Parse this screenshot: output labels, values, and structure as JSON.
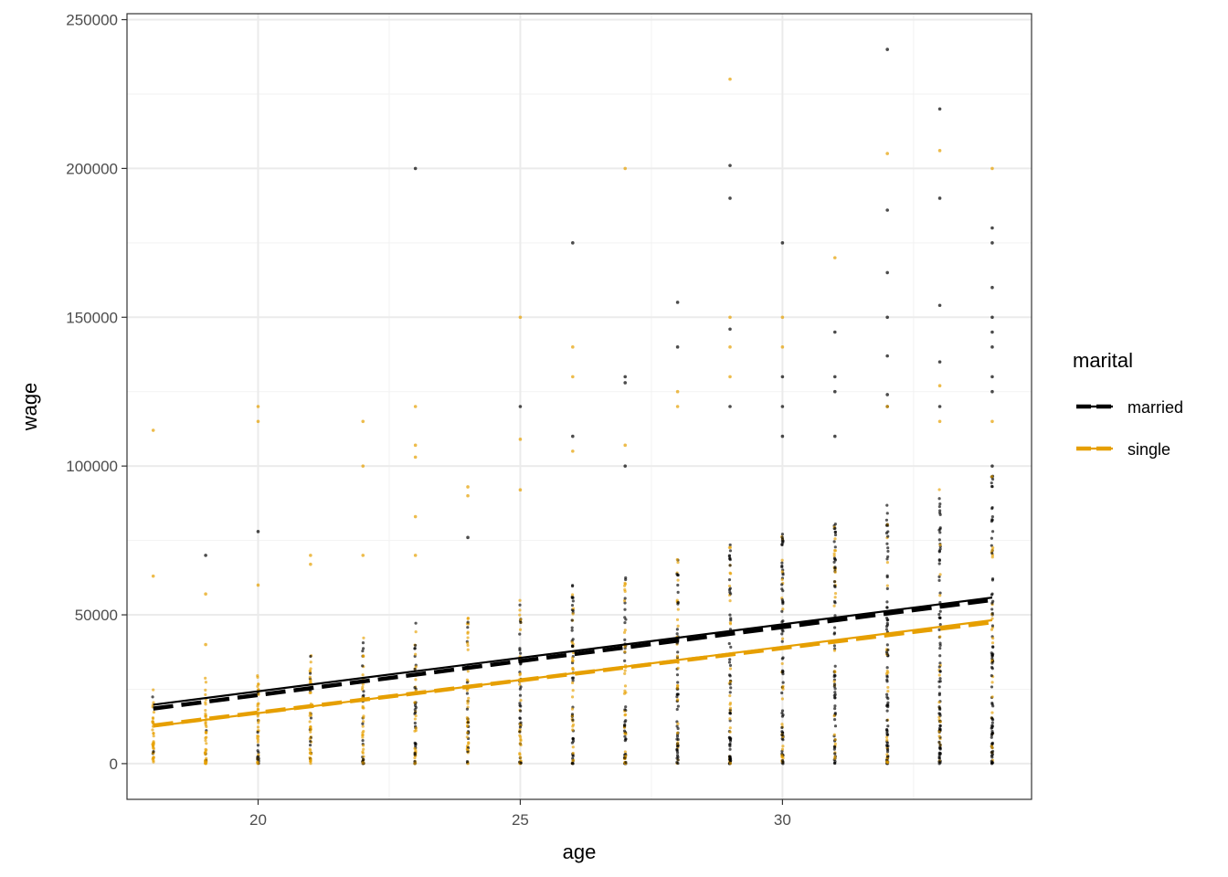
{
  "chart_data": {
    "type": "scatter",
    "xlabel": "age",
    "ylabel": "wage",
    "xlim": [
      17.5,
      34.75
    ],
    "ylim": [
      -12000,
      252000
    ],
    "x_ticks": [
      20,
      25,
      30
    ],
    "x_tick_labels": [
      "20",
      "25",
      "30"
    ],
    "y_ticks": [
      0,
      50000,
      100000,
      150000,
      200000,
      250000
    ],
    "y_tick_labels": [
      "0",
      "50000",
      "100000",
      "150000",
      "200000",
      "250000"
    ],
    "grid": true,
    "legend": {
      "title": "marital",
      "position": "right",
      "entries": [
        "married",
        "single"
      ]
    },
    "colors": {
      "married": "#000000",
      "single": "#E69F00"
    },
    "x_ages": [
      18,
      19,
      20,
      21,
      22,
      23,
      24,
      25,
      26,
      27,
      28,
      29,
      30,
      31,
      32,
      33,
      34
    ],
    "series": [
      {
        "name": "married",
        "color": "#000000",
        "points": [
          [
            19,
            70000
          ],
          [
            20,
            78000
          ],
          [
            23,
            200000
          ],
          [
            24,
            76000
          ],
          [
            25,
            120000
          ],
          [
            26,
            175000
          ],
          [
            26,
            110000
          ],
          [
            27,
            130000
          ],
          [
            27,
            128000
          ],
          [
            27,
            100000
          ],
          [
            28,
            155000
          ],
          [
            28,
            140000
          ],
          [
            29,
            201000
          ],
          [
            29,
            190000
          ],
          [
            29,
            146000
          ],
          [
            29,
            120000
          ],
          [
            30,
            175000
          ],
          [
            30,
            130000
          ],
          [
            30,
            120000
          ],
          [
            30,
            110000
          ],
          [
            31,
            145000
          ],
          [
            31,
            130000
          ],
          [
            31,
            125000
          ],
          [
            31,
            110000
          ],
          [
            32,
            240000
          ],
          [
            32,
            186000
          ],
          [
            32,
            165000
          ],
          [
            32,
            150000
          ],
          [
            32,
            137000
          ],
          [
            32,
            124000
          ],
          [
            32,
            120000
          ],
          [
            33,
            220000
          ],
          [
            33,
            190000
          ],
          [
            33,
            154000
          ],
          [
            33,
            135000
          ],
          [
            33,
            120000
          ],
          [
            34,
            180000
          ],
          [
            34,
            175000
          ],
          [
            34,
            160000
          ],
          [
            34,
            150000
          ],
          [
            34,
            145000
          ],
          [
            34,
            140000
          ],
          [
            34,
            130000
          ],
          [
            34,
            125000
          ],
          [
            34,
            100000
          ]
        ]
      },
      {
        "name": "single",
        "color": "#E69F00",
        "points": [
          [
            18,
            112000
          ],
          [
            18,
            63000
          ],
          [
            19,
            57000
          ],
          [
            19,
            40000
          ],
          [
            20,
            120000
          ],
          [
            20,
            115000
          ],
          [
            20,
            60000
          ],
          [
            21,
            70000
          ],
          [
            21,
            67000
          ],
          [
            22,
            115000
          ],
          [
            22,
            100000
          ],
          [
            22,
            70000
          ],
          [
            23,
            120000
          ],
          [
            23,
            107000
          ],
          [
            23,
            103000
          ],
          [
            23,
            83000
          ],
          [
            23,
            70000
          ],
          [
            24,
            93000
          ],
          [
            24,
            90000
          ],
          [
            25,
            150000
          ],
          [
            25,
            109000
          ],
          [
            25,
            92000
          ],
          [
            26,
            140000
          ],
          [
            26,
            130000
          ],
          [
            26,
            105000
          ],
          [
            27,
            200000
          ],
          [
            27,
            107000
          ],
          [
            28,
            125000
          ],
          [
            28,
            120000
          ],
          [
            29,
            230000
          ],
          [
            29,
            150000
          ],
          [
            29,
            140000
          ],
          [
            29,
            130000
          ],
          [
            30,
            150000
          ],
          [
            30,
            140000
          ],
          [
            31,
            170000
          ],
          [
            32,
            205000
          ],
          [
            32,
            120000
          ],
          [
            33,
            206000
          ],
          [
            33,
            127000
          ],
          [
            33,
            115000
          ],
          [
            34,
            200000
          ],
          [
            34,
            115000
          ]
        ]
      }
    ],
    "fit_lines": [
      {
        "series": "married",
        "style": "solid",
        "x": [
          18,
          34
        ],
        "y": [
          19800,
          55800
        ]
      },
      {
        "series": "married",
        "style": "dashed",
        "x": [
          18,
          34
        ],
        "y": [
          18500,
          55000
        ]
      },
      {
        "series": "single",
        "style": "solid",
        "x": [
          18,
          34
        ],
        "y": [
          12500,
          48200
        ]
      },
      {
        "series": "single",
        "style": "dashed",
        "x": [
          18,
          34
        ],
        "y": [
          12800,
          47500
        ]
      }
    ]
  }
}
